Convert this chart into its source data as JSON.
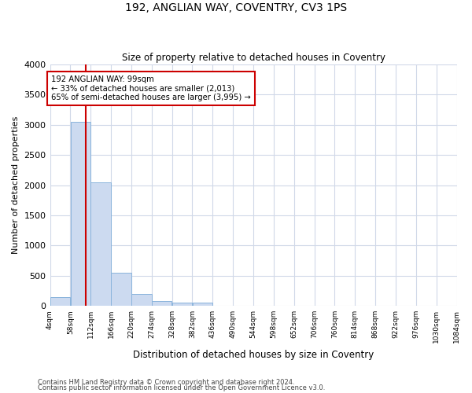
{
  "title1": "192, ANGLIAN WAY, COVENTRY, CV3 1PS",
  "title2": "Size of property relative to detached houses in Coventry",
  "xlabel": "Distribution of detached houses by size in Coventry",
  "ylabel": "Number of detached properties",
  "footnote1": "Contains HM Land Registry data © Crown copyright and database right 2024.",
  "footnote2": "Contains public sector information licensed under the Open Government Licence v3.0.",
  "bin_edges": [
    4,
    58,
    112,
    166,
    220,
    274,
    328,
    382,
    436,
    490,
    544,
    598,
    652,
    706,
    760,
    814,
    868,
    922,
    976,
    1030,
    1084
  ],
  "bar_heights": [
    150,
    3050,
    2050,
    550,
    200,
    75,
    50,
    50,
    0,
    0,
    0,
    0,
    0,
    0,
    0,
    0,
    0,
    0,
    0,
    0
  ],
  "bar_color": "#ccdaf0",
  "bar_edge_color": "#8ab4dc",
  "property_size": 99,
  "red_line_color": "#cc0000",
  "annotation_line1": "192 ANGLIAN WAY: 99sqm",
  "annotation_line2": "← 33% of detached houses are smaller (2,013)",
  "annotation_line3": "65% of semi-detached houses are larger (3,995) →",
  "annotation_box_color": "#ffffff",
  "annotation_box_edge_color": "#cc0000",
  "ylim": [
    0,
    4000
  ],
  "yticks": [
    0,
    500,
    1000,
    1500,
    2000,
    2500,
    3000,
    3500,
    4000
  ],
  "background_color": "#ffffff",
  "grid_color": "#d0d8e8",
  "tick_labels": [
    "4sqm",
    "58sqm",
    "112sqm",
    "166sqm",
    "220sqm",
    "274sqm",
    "328sqm",
    "382sqm",
    "436sqm",
    "490sqm",
    "544sqm",
    "598sqm",
    "652sqm",
    "706sqm",
    "760sqm",
    "814sqm",
    "868sqm",
    "922sqm",
    "976sqm",
    "1030sqm",
    "1084sqm"
  ]
}
